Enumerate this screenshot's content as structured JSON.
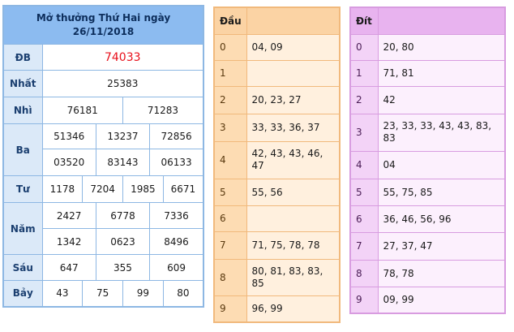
{
  "results": {
    "title_line1": "Mở thưởng Thứ Hai ngày",
    "title_line2": "26/11/2018",
    "rows": {
      "db": {
        "label": "ĐB",
        "values": [
          "74033"
        ]
      },
      "nhat": {
        "label": "Nhất",
        "values": [
          "25383"
        ]
      },
      "nhi": {
        "label": "Nhì",
        "values": [
          "76181",
          "71283"
        ]
      },
      "ba": {
        "label": "Ba",
        "values": [
          "51346",
          "13237",
          "72856",
          "03520",
          "83143",
          "06133"
        ]
      },
      "tu": {
        "label": "Tư",
        "values": [
          "1178",
          "7204",
          "1985",
          "6671"
        ]
      },
      "nam": {
        "label": "Năm",
        "values": [
          "2427",
          "6778",
          "7336",
          "1342",
          "0623",
          "8496"
        ]
      },
      "sau": {
        "label": "Sáu",
        "values": [
          "647",
          "355",
          "609"
        ]
      },
      "bay": {
        "label": "Bảy",
        "values": [
          "43",
          "75",
          "99",
          "80"
        ]
      }
    },
    "special_color": "#e8101b"
  },
  "dau": {
    "header": "Đầu",
    "rows": [
      {
        "digit": "0",
        "nums": "04, 09"
      },
      {
        "digit": "1",
        "nums": ""
      },
      {
        "digit": "2",
        "nums": "20, 23, 27"
      },
      {
        "digit": "3",
        "nums": "33, 33, 36, 37"
      },
      {
        "digit": "4",
        "nums": "42, 43, 43, 46, 47"
      },
      {
        "digit": "5",
        "nums": "55, 56"
      },
      {
        "digit": "6",
        "nums": ""
      },
      {
        "digit": "7",
        "nums": "71, 75, 78, 78"
      },
      {
        "digit": "8",
        "nums": "80, 81, 83, 83, 85"
      },
      {
        "digit": "9",
        "nums": "96, 99"
      }
    ]
  },
  "dit": {
    "header": "Đít",
    "rows": [
      {
        "digit": "0",
        "nums": "20, 80"
      },
      {
        "digit": "1",
        "nums": "71, 81"
      },
      {
        "digit": "2",
        "nums": "42"
      },
      {
        "digit": "3",
        "nums": "23, 33, 33, 43, 43, 83, 83"
      },
      {
        "digit": "4",
        "nums": "04"
      },
      {
        "digit": "5",
        "nums": "55, 75, 85"
      },
      {
        "digit": "6",
        "nums": "36, 46, 56, 96"
      },
      {
        "digit": "7",
        "nums": "27, 37, 47"
      },
      {
        "digit": "8",
        "nums": "78, 78"
      },
      {
        "digit": "9",
        "nums": "09, 99"
      }
    ]
  }
}
